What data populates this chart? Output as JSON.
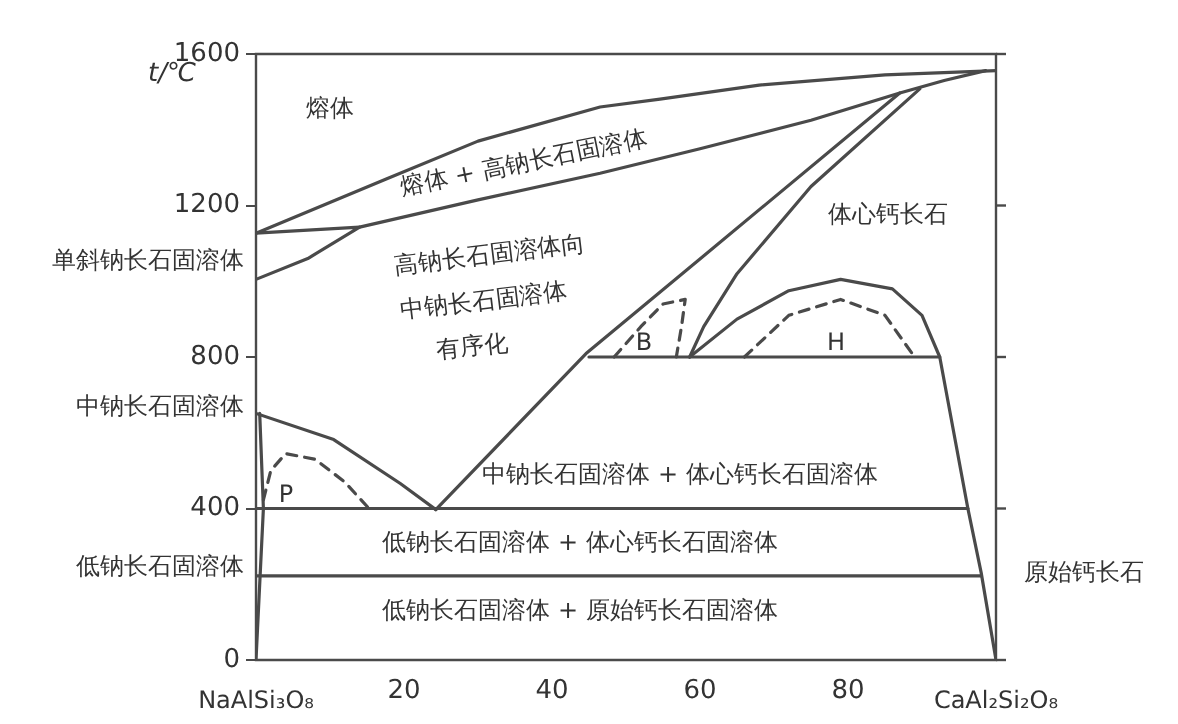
{
  "chart_data": {
    "type": "line",
    "ylabel": "t/℃",
    "xlim": [
      0,
      100
    ],
    "xticks": [
      20,
      40,
      60,
      80
    ],
    "ylim": [
      0,
      1600
    ],
    "yticks": [
      0,
      400,
      800,
      1200,
      1600
    ],
    "grid": false,
    "legend": false,
    "marker": "none",
    "series": [
      {
        "color": "#4a4a4a",
        "line_style": "solid",
        "x": [
          0,
          17.6,
          30,
          46.5,
          54.6,
          68,
          85,
          100
        ],
        "values": [
          1127,
          1270,
          1370,
          1460,
          1481,
          1518,
          1545,
          1556
        ]
      },
      {
        "color": "#4a4a4a",
        "line_style": "solid",
        "x": [
          14,
          30,
          46.5,
          60,
          75,
          87,
          93,
          98.6
        ],
        "values": [
          1143,
          1215,
          1285,
          1350,
          1425,
          1497,
          1530,
          1556
        ]
      },
      {
        "color": "#4a4a4a",
        "line_style": "solid",
        "x": [
          0,
          14,
          7,
          0
        ],
        "values": [
          1127,
          1143,
          1060,
          1005
        ]
      },
      {
        "color": "#4a4a4a",
        "line_style": "solid",
        "x": [
          87,
          44.6,
          24.3
        ],
        "values": [
          1497,
          809,
          397
        ]
      },
      {
        "color": "#4a4a4a",
        "line_style": "solid",
        "x": [
          89.7,
          75,
          65,
          60.5,
          58.6
        ],
        "values": [
          1508,
          1250,
          1020,
          880,
          800
        ]
      },
      {
        "color": "#4a4a4a",
        "line_style": "solid",
        "x": [
          58.6,
          65,
          72,
          79,
          86,
          90,
          92.4,
          96.2,
          98,
          100
        ],
        "values": [
          800,
          900,
          975,
          1005,
          980,
          910,
          800,
          400,
          230,
          0
        ]
      },
      {
        "color": "#4a4a4a",
        "line_style": "solid",
        "x": [
          45,
          92.4
        ],
        "values": [
          800,
          800
        ]
      },
      {
        "color": "#4a4a4a",
        "line_style": "solid",
        "x": [
          0,
          96.2
        ],
        "values": [
          400,
          400
        ]
      },
      {
        "color": "#4a4a4a",
        "line_style": "solid",
        "x": [
          0,
          98
        ],
        "values": [
          222,
          222
        ]
      },
      {
        "color": "#4a4a4a",
        "line_style": "solid",
        "x": [
          0,
          10.5,
          19.5,
          24.3
        ],
        "values": [
          651,
          582,
          466,
          397
        ]
      },
      {
        "color": "#4a4a4a",
        "line_style": "solid",
        "x": [
          0,
          1,
          0.5
        ],
        "values": [
          0,
          400,
          651
        ]
      },
      {
        "color": "#4a4a4a",
        "line_style": "dashed",
        "x": [
          1,
          2,
          4,
          8,
          12,
          15.4
        ],
        "values": [
          423,
          500,
          545,
          530,
          470,
          397
        ]
      },
      {
        "color": "#4a4a4a",
        "line_style": "dashed",
        "x": [
          48.4,
          52,
          55,
          58,
          57.5,
          56.8
        ],
        "values": [
          800,
          880,
          940,
          952,
          880,
          800
        ]
      },
      {
        "color": "#4a4a4a",
        "line_style": "dashed",
        "x": [
          66,
          72,
          79,
          85,
          89
        ],
        "values": [
          800,
          910,
          952,
          910,
          800
        ]
      }
    ],
    "annotations": [
      "熔体",
      "熔体 + 高钠长石固溶体",
      "高钠长石固溶体向",
      "中钠长石固溶体",
      "有序化",
      "体心钙长石",
      "B",
      "H",
      "P",
      "中钠长石固溶体 + 体心钙长石固溶体",
      "低钠长石固溶体 + 体心钙长石固溶体",
      "低钠长石固溶体 + 原始钙长石固溶体",
      "单斜钠长石固溶体",
      "中钠长石固溶体",
      "低钠长石固溶体",
      "原始钙长石",
      "NaAlSi₃O₈",
      "CaAl₂Si₂O₈"
    ]
  }
}
